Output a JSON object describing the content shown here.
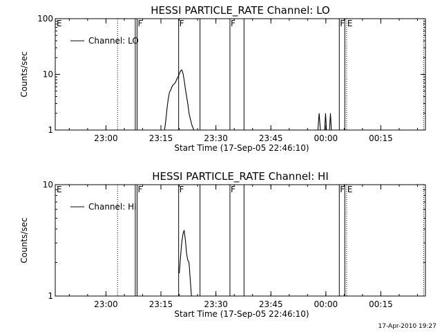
{
  "chart_data": [
    {
      "type": "line",
      "title": "HESSI PARTICLE_RATE Channel: LO",
      "xlabel": "Start Time (17-Sep-05 22:46:10)",
      "ylabel": "Counts/sec",
      "yscale": "log",
      "ylim": [
        1,
        100
      ],
      "xlim": [
        "22:46:10",
        "00:27:10"
      ],
      "x_ticks": [
        "23:00",
        "23:15",
        "23:30",
        "23:45",
        "00:00",
        "00:15"
      ],
      "y_ticks": [
        "1",
        "10",
        "100"
      ],
      "legend": {
        "placement": "top-left",
        "entries": [
          "Channel: LO"
        ]
      },
      "flags": [
        {
          "label": "E",
          "time": "22:46:10"
        },
        {
          "label": "F",
          "time": "23:08:30"
        },
        {
          "label": "F",
          "time": "23:19:50"
        },
        {
          "label": "F",
          "time": "23:33:50"
        },
        {
          "label": "F",
          "time": "00:03:40"
        },
        {
          "label": "E",
          "time": "00:05:40"
        }
      ],
      "solid_lines": [
        "23:08:00",
        "23:08:30",
        "23:19:50",
        "23:25:40",
        "23:33:50",
        "23:37:40",
        "00:03:40",
        "00:05:10"
      ],
      "dotted_lines": [
        "23:03:10",
        "00:05:40",
        "00:26:40"
      ],
      "series": [
        {
          "name": "Channel: LO",
          "segments": [
            [
              {
                "t": "23:16:00",
                "v": 1.0
              },
              {
                "t": "23:16:20",
                "v": 1.5
              },
              {
                "t": "23:16:40",
                "v": 2.5
              },
              {
                "t": "23:17:00",
                "v": 3.6
              },
              {
                "t": "23:17:20",
                "v": 4.8
              },
              {
                "t": "23:17:40",
                "v": 5.2
              },
              {
                "t": "23:18:00",
                "v": 6.0
              },
              {
                "t": "23:18:20",
                "v": 6.5
              },
              {
                "t": "23:18:40",
                "v": 6.8
              },
              {
                "t": "23:19:00",
                "v": 7.2
              },
              {
                "t": "23:19:20",
                "v": 8.2
              },
              {
                "t": "23:19:50",
                "v": 9.5
              },
              {
                "t": "23:20:20",
                "v": 11.5
              },
              {
                "t": "23:20:40",
                "v": 12.0
              },
              {
                "t": "23:21:00",
                "v": 10.5
              },
              {
                "t": "23:21:20",
                "v": 8.0
              },
              {
                "t": "23:21:40",
                "v": 5.5
              },
              {
                "t": "23:22:00",
                "v": 4.0
              },
              {
                "t": "23:22:20",
                "v": 3.0
              },
              {
                "t": "23:22:40",
                "v": 2.0
              },
              {
                "t": "23:23:00",
                "v": 1.6
              },
              {
                "t": "23:23:30",
                "v": 1.2
              },
              {
                "t": "23:24:00",
                "v": 1.0
              }
            ],
            [
              {
                "t": "23:57:50",
                "v": 1.0
              },
              {
                "t": "23:58:10",
                "v": 2.0
              },
              {
                "t": "23:58:30",
                "v": 1.0
              }
            ],
            [
              {
                "t": "23:59:40",
                "v": 1.0
              },
              {
                "t": "23:59:55",
                "v": 2.0
              },
              {
                "t": "00:00:10",
                "v": 1.0
              }
            ],
            [
              {
                "t": "00:01:00",
                "v": 1.0
              },
              {
                "t": "00:01:15",
                "v": 2.0
              },
              {
                "t": "00:01:30",
                "v": 1.0
              }
            ]
          ]
        }
      ]
    },
    {
      "type": "line",
      "title": "HESSI PARTICLE_RATE Channel: HI",
      "xlabel": "Start Time (17-Sep-05 22:46:10)",
      "ylabel": "Counts/sec",
      "yscale": "log",
      "ylim": [
        1,
        10
      ],
      "xlim": [
        "22:46:10",
        "00:27:10"
      ],
      "x_ticks": [
        "23:00",
        "23:15",
        "23:30",
        "23:45",
        "00:00",
        "00:15"
      ],
      "y_ticks": [
        "1",
        "10"
      ],
      "legend": {
        "placement": "top-left",
        "entries": [
          "Channel: HI"
        ]
      },
      "flags": [
        {
          "label": "E",
          "time": "22:46:10"
        },
        {
          "label": "F",
          "time": "23:08:30"
        },
        {
          "label": "F",
          "time": "23:19:50"
        },
        {
          "label": "F",
          "time": "23:33:50"
        },
        {
          "label": "F",
          "time": "00:03:40"
        },
        {
          "label": "E",
          "time": "00:05:40"
        }
      ],
      "solid_lines": [
        "23:08:00",
        "23:08:30",
        "23:19:50",
        "23:25:40",
        "23:33:50",
        "23:37:40",
        "00:03:40",
        "00:05:10"
      ],
      "dotted_lines": [
        "23:03:10",
        "00:05:40",
        "00:26:40"
      ],
      "series": [
        {
          "name": "Channel: HI",
          "segments": [
            [
              {
                "t": "23:20:00",
                "v": 1.6
              },
              {
                "t": "23:20:20",
                "v": 2.2
              },
              {
                "t": "23:20:40",
                "v": 3.0
              },
              {
                "t": "23:21:00",
                "v": 3.6
              },
              {
                "t": "23:21:20",
                "v": 3.9
              },
              {
                "t": "23:21:40",
                "v": 3.2
              },
              {
                "t": "23:22:00",
                "v": 2.4
              },
              {
                "t": "23:22:20",
                "v": 2.1
              },
              {
                "t": "23:22:40",
                "v": 2.0
              },
              {
                "t": "23:23:00",
                "v": 1.4
              },
              {
                "t": "23:23:20",
                "v": 1.0
              }
            ]
          ]
        }
      ]
    }
  ],
  "footer": {
    "timestamp": "17-Apr-2010 19:27"
  }
}
